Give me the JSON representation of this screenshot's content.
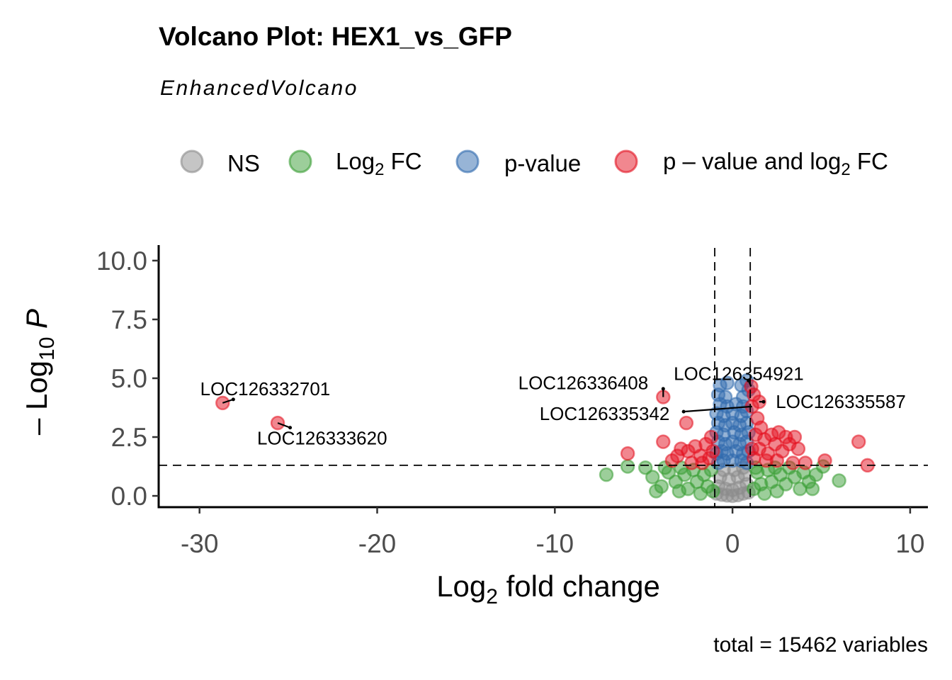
{
  "chart_data": {
    "type": "scatter",
    "title": "Volcano Plot: HEX1_vs_GFP",
    "subtitle": "EnhancedVolcano",
    "caption": "total = 15462 variables",
    "xlabel": {
      "prefix": "Log",
      "sub": "2",
      "suffix": " fold change"
    },
    "ylabel": {
      "prefix": "– Log",
      "sub": "10",
      "italic": " P"
    },
    "xlim": [
      -32.3,
      11.0
    ],
    "ylim": [
      -0.48,
      10.66
    ],
    "xticks": [
      {
        "v": -30,
        "label": "-30"
      },
      {
        "v": -20,
        "label": "-20"
      },
      {
        "v": -10,
        "label": "-10"
      },
      {
        "v": 0,
        "label": "0"
      },
      {
        "v": 10,
        "label": "10"
      }
    ],
    "yticks": [
      {
        "v": 0,
        "label": "0.0"
      },
      {
        "v": 2.5,
        "label": "2.5"
      },
      {
        "v": 5,
        "label": "5.0"
      },
      {
        "v": 7.5,
        "label": "7.5"
      },
      {
        "v": 10,
        "label": "10.0"
      }
    ],
    "fc_cutoff": 1,
    "p_cutoff_log10": 1.3,
    "grid": false,
    "legend_position": "top",
    "legend": [
      {
        "key": "ns",
        "label": "NS",
        "sub": "",
        "suffix": "",
        "color": "#8c8c8c"
      },
      {
        "key": "fc",
        "label": "Log",
        "sub": "2",
        "suffix": " FC",
        "color": "#3a9e35"
      },
      {
        "key": "p",
        "label": "p-value",
        "sub": "",
        "suffix": "",
        "color": "#2f69ad"
      },
      {
        "key": "both",
        "label": "p – value and log",
        "sub": "2",
        "suffix": " FC",
        "color": "#e3101f"
      }
    ],
    "series": {
      "ns": [
        [
          -0.9,
          0.1
        ],
        [
          -0.6,
          0.05
        ],
        [
          -0.3,
          0.02
        ],
        [
          0,
          0
        ],
        [
          0.3,
          0.03
        ],
        [
          0.6,
          0.1
        ],
        [
          0.9,
          0.15
        ],
        [
          -0.8,
          0.4
        ],
        [
          -0.4,
          0.3
        ],
        [
          0,
          0.25
        ],
        [
          0.4,
          0.35
        ],
        [
          0.8,
          0.5
        ],
        [
          -0.7,
          0.8
        ],
        [
          -0.2,
          0.7
        ],
        [
          0.3,
          0.8
        ],
        [
          0.7,
          0.9
        ],
        [
          -0.5,
          1.1
        ],
        [
          0.1,
          1.1
        ],
        [
          0.6,
          1.2
        ]
      ],
      "fc": [
        [
          -7.1,
          0.9
        ],
        [
          -5.9,
          1.25
        ],
        [
          -4.9,
          1.2
        ],
        [
          -4.5,
          0.8
        ],
        [
          -4.0,
          0.4
        ],
        [
          -3.6,
          1.0
        ],
        [
          -3.2,
          0.6
        ],
        [
          -3.0,
          0.2
        ],
        [
          -2.7,
          0.9
        ],
        [
          -2.5,
          0.3
        ],
        [
          -2.2,
          1.1
        ],
        [
          -2.0,
          0.6
        ],
        [
          -1.8,
          0.1
        ],
        [
          -1.6,
          0.9
        ],
        [
          -1.4,
          0.4
        ],
        [
          -1.2,
          1.1
        ],
        [
          -1.1,
          0.2
        ],
        [
          -3.8,
          1.2
        ],
        [
          -4.3,
          0.2
        ],
        [
          -2.9,
          1.2
        ],
        [
          1.2,
          0.3
        ],
        [
          1.4,
          1.0
        ],
        [
          1.6,
          0.5
        ],
        [
          1.8,
          0.1
        ],
        [
          2.0,
          1.1
        ],
        [
          2.2,
          0.6
        ],
        [
          2.5,
          0.2
        ],
        [
          2.7,
          0.9
        ],
        [
          3.0,
          0.5
        ],
        [
          3.2,
          1.2
        ],
        [
          3.5,
          0.8
        ],
        [
          3.8,
          0.3
        ],
        [
          4.0,
          1.0
        ],
        [
          4.3,
          0.6
        ],
        [
          4.5,
          0.3
        ],
        [
          4.7,
          0.9
        ],
        [
          5.1,
          1.25
        ],
        [
          6.0,
          0.65
        ],
        [
          2.4,
          1.2
        ],
        [
          1.3,
          1.2
        ]
      ],
      "p": [
        [
          -0.8,
          1.4
        ],
        [
          -0.5,
          1.5
        ],
        [
          0,
          1.5
        ],
        [
          0.5,
          1.5
        ],
        [
          0.8,
          1.4
        ],
        [
          -0.9,
          1.8
        ],
        [
          -0.6,
          1.9
        ],
        [
          -0.3,
          1.8
        ],
        [
          0.2,
          1.9
        ],
        [
          0.6,
          1.8
        ],
        [
          0.9,
          1.9
        ],
        [
          -0.8,
          2.3
        ],
        [
          -0.4,
          2.2
        ],
        [
          0,
          2.3
        ],
        [
          0.4,
          2.2
        ],
        [
          0.8,
          2.3
        ],
        [
          -0.9,
          2.7
        ],
        [
          -0.5,
          2.6
        ],
        [
          0.1,
          2.7
        ],
        [
          0.5,
          2.6
        ],
        [
          0.9,
          2.7
        ],
        [
          -0.8,
          3.1
        ],
        [
          -0.4,
          3.0
        ],
        [
          0,
          3.1
        ],
        [
          0.4,
          3.0
        ],
        [
          0.8,
          3.1
        ],
        [
          -0.9,
          3.5
        ],
        [
          -0.5,
          3.4
        ],
        [
          0,
          3.5
        ],
        [
          0.5,
          3.4
        ],
        [
          0.8,
          3.6
        ],
        [
          -0.7,
          3.9
        ],
        [
          -0.3,
          3.8
        ],
        [
          0.2,
          3.9
        ],
        [
          0.6,
          3.8
        ],
        [
          -0.8,
          4.3
        ],
        [
          -0.4,
          4.2
        ],
        [
          0.6,
          4.2
        ],
        [
          -0.7,
          4.7
        ],
        [
          -0.3,
          4.8
        ],
        [
          0.5,
          4.7
        ],
        [
          0.8,
          4.9
        ],
        [
          0.9,
          4.5
        ]
      ],
      "both": [
        [
          -28.7,
          3.95
        ],
        [
          -25.6,
          3.1
        ],
        [
          -3.9,
          4.2
        ],
        [
          -2.6,
          3.1
        ],
        [
          -5.9,
          1.8
        ],
        [
          -3.9,
          2.3
        ],
        [
          -2.9,
          2.0
        ],
        [
          -2.5,
          1.9
        ],
        [
          -2.1,
          2.1
        ],
        [
          -1.8,
          1.7
        ],
        [
          -1.5,
          2.2
        ],
        [
          -1.3,
          1.6
        ],
        [
          -1.1,
          1.9
        ],
        [
          -3.4,
          1.5
        ],
        [
          -3.1,
          1.7
        ],
        [
          -2.3,
          1.4
        ],
        [
          -1.7,
          1.4
        ],
        [
          -1.2,
          2.5
        ],
        [
          1.1,
          3.8
        ],
        [
          1.05,
          4.65
        ],
        [
          1.5,
          4.0
        ],
        [
          1.2,
          4.3
        ],
        [
          1.4,
          3.3
        ],
        [
          1.6,
          2.9
        ],
        [
          1.3,
          2.6
        ],
        [
          1.8,
          2.4
        ],
        [
          2.2,
          2.6
        ],
        [
          2.6,
          2.7
        ],
        [
          3.0,
          2.5
        ],
        [
          3.5,
          2.5
        ],
        [
          2.4,
          2.2
        ],
        [
          3.2,
          2.2
        ],
        [
          1.5,
          2.0
        ],
        [
          2.0,
          1.8
        ],
        [
          2.8,
          1.9
        ],
        [
          3.7,
          2.0
        ],
        [
          1.2,
          1.6
        ],
        [
          1.9,
          1.5
        ],
        [
          2.5,
          1.5
        ],
        [
          3.4,
          1.4
        ],
        [
          5.2,
          1.5
        ],
        [
          7.1,
          2.3
        ],
        [
          7.6,
          1.3
        ],
        [
          1.1,
          2.0
        ],
        [
          4.1,
          1.4
        ]
      ]
    },
    "annotations": [
      {
        "text": "LOC126332701",
        "point": [
          -28.7,
          3.95
        ],
        "text_at": [
          -26.3,
          4.55
        ],
        "line_to": [
          -28.1,
          4.1
        ]
      },
      {
        "text": "LOC126333620",
        "point": [
          -25.6,
          3.1
        ],
        "text_at": [
          -23.1,
          2.45
        ],
        "line_to": [
          -24.9,
          2.9
        ]
      },
      {
        "text": "LOC126336408",
        "point": [
          -3.9,
          4.2
        ],
        "text_at": [
          -8.4,
          4.8
        ],
        "line_to": [
          -3.9,
          4.55
        ]
      },
      {
        "text": "LOC126354921",
        "point": [
          1.05,
          4.65
        ],
        "text_at": [
          0.35,
          5.2
        ],
        "line_to": [
          0.9,
          4.9
        ]
      },
      {
        "text": "LOC126335342",
        "point": [
          1.1,
          3.8
        ],
        "text_at": [
          -7.2,
          3.5
        ],
        "line_to": [
          -2.75,
          3.58
        ]
      },
      {
        "text": "LOC126335587",
        "point": [
          1.5,
          4.0
        ],
        "text_at": [
          6.1,
          4.0
        ],
        "line_to": [
          1.75,
          4.0
        ]
      }
    ]
  }
}
